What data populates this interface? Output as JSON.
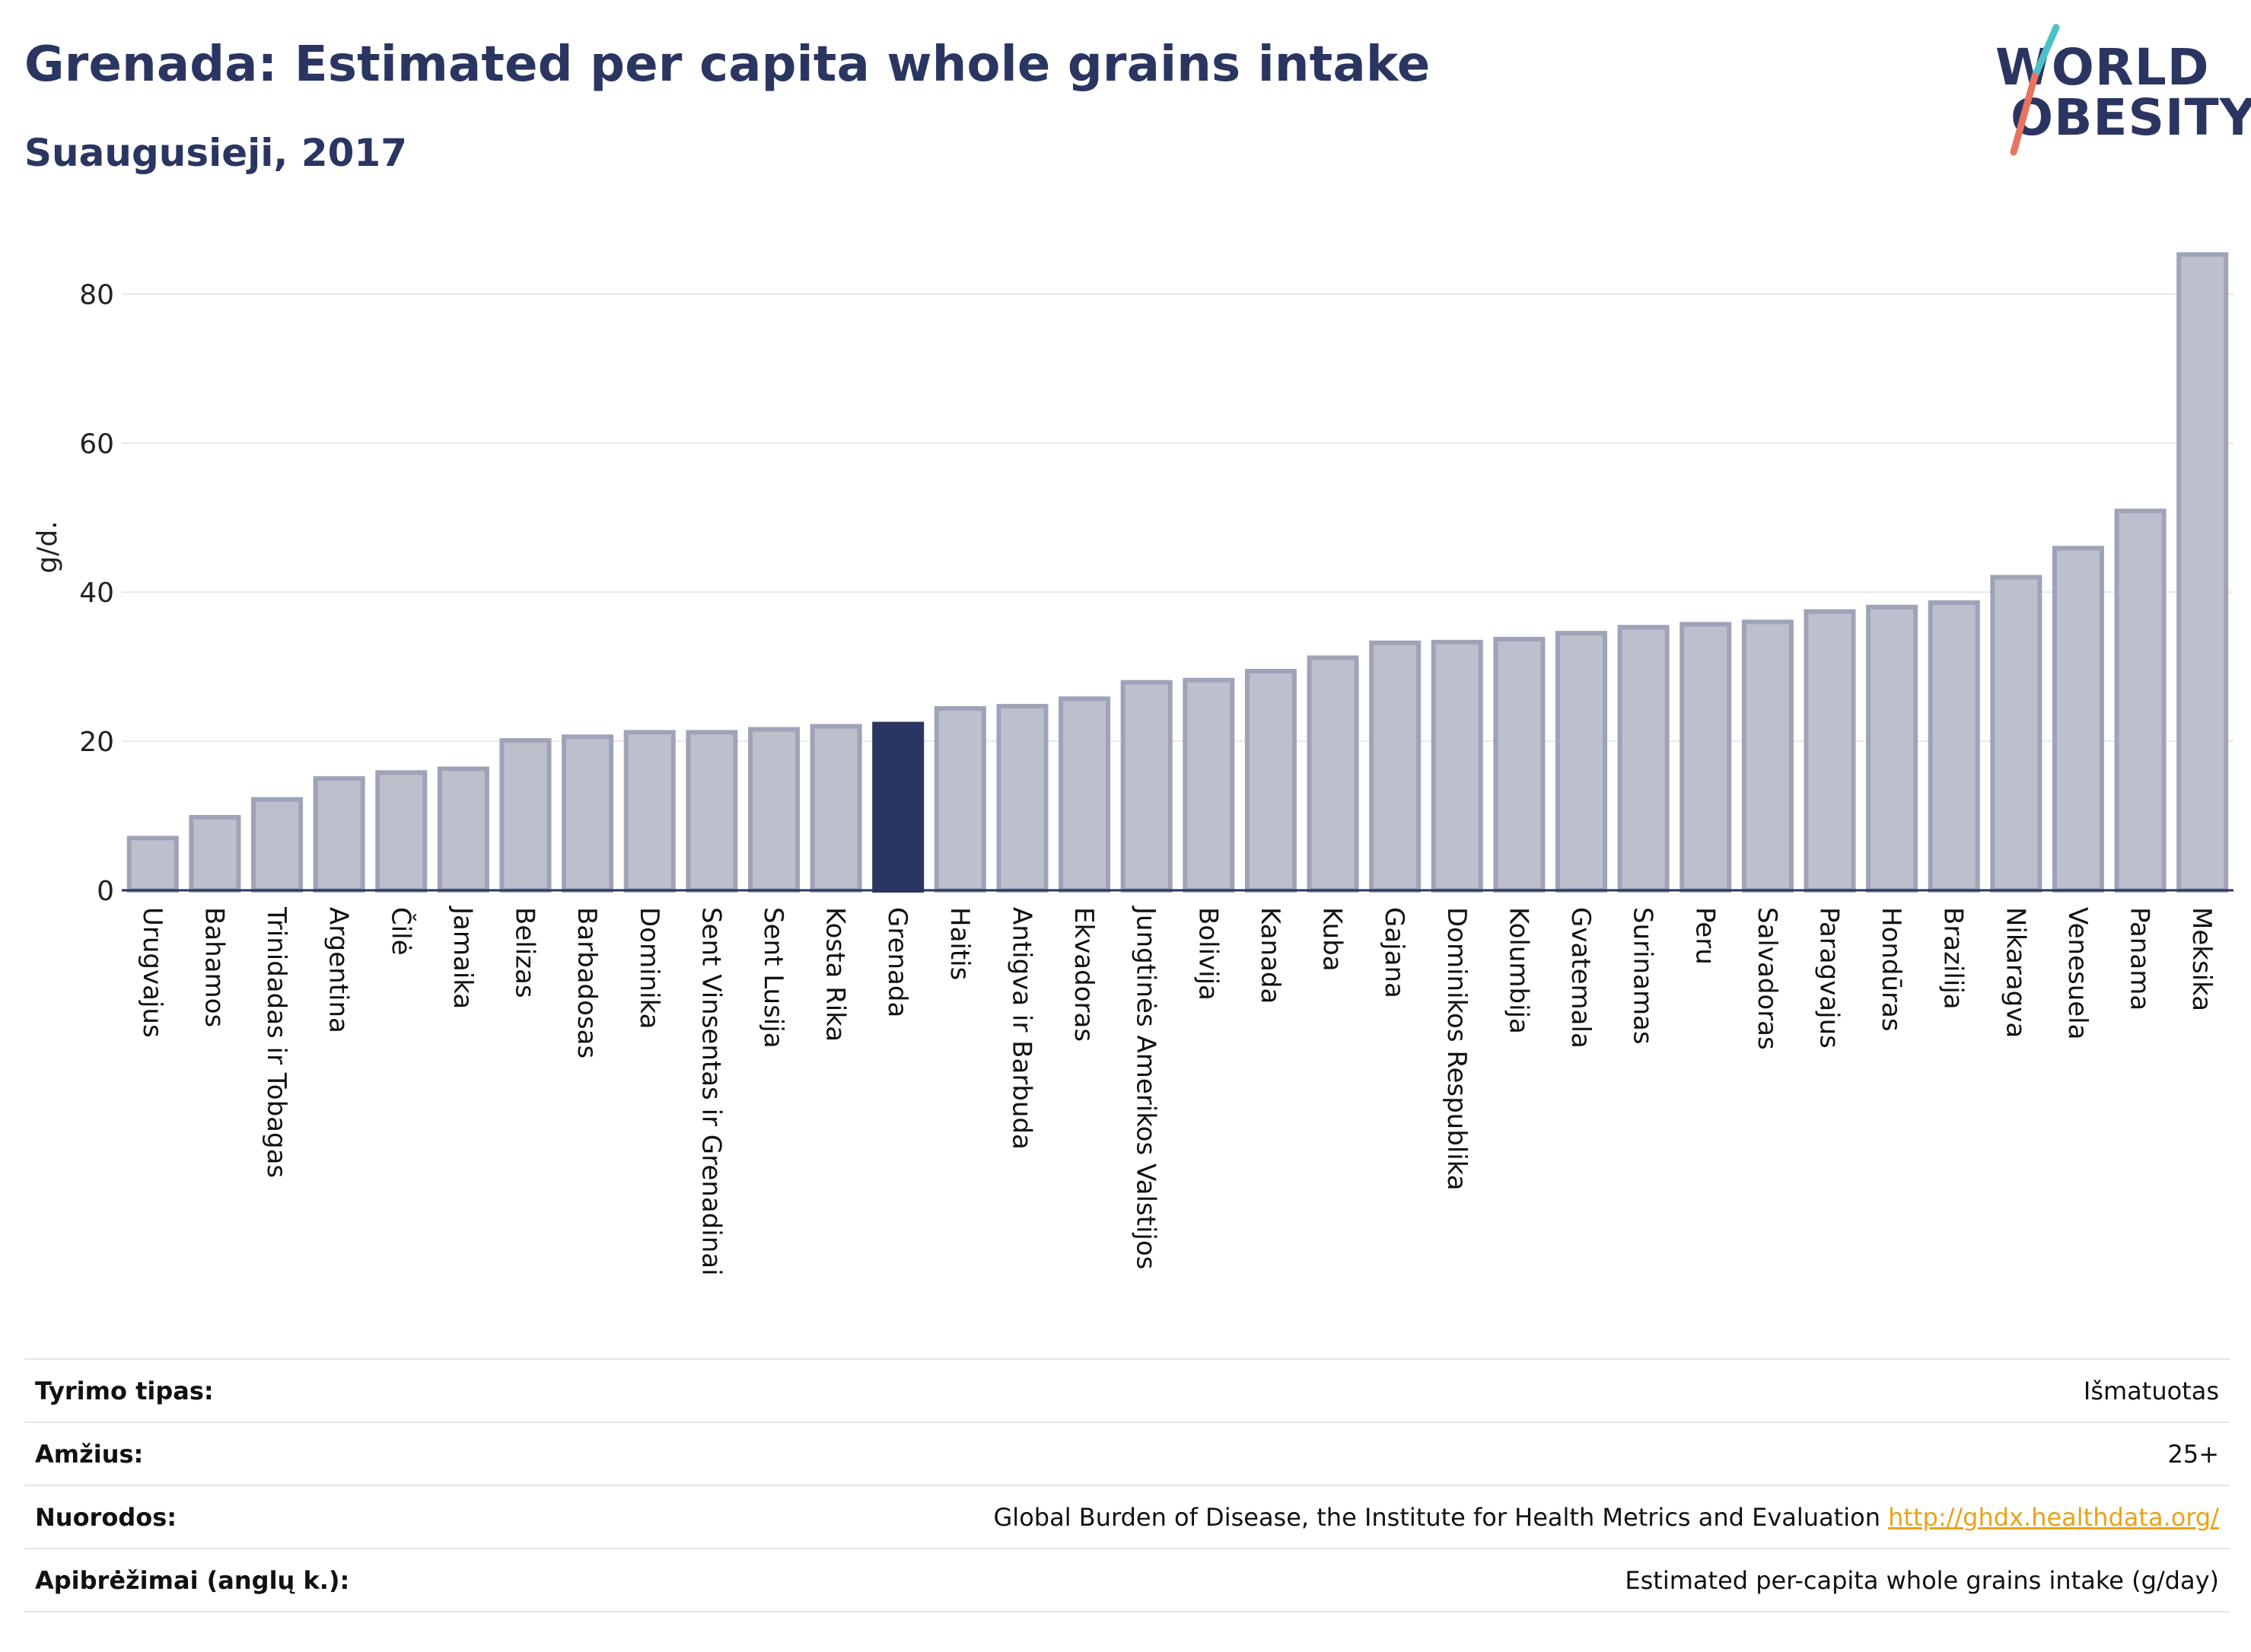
{
  "header": {
    "title": "Grenada: Estimated per capita whole grains intake",
    "subtitle": "Suaugusieji, 2017"
  },
  "logo": {
    "line1": "WORLD",
    "line2": "OBESITY",
    "stripe_colors": [
      "#4ec1c8",
      "#e8735f"
    ]
  },
  "chart_data": {
    "type": "bar",
    "ylabel": "g/d.",
    "ylim": [
      0,
      88
    ],
    "yticks": [
      0,
      20,
      40,
      60,
      80
    ],
    "grid": true,
    "highlight": "Grenada",
    "colors": {
      "bar": "#bcc0cd",
      "bar_border": "#9ea3b8",
      "highlight": "#2b3561",
      "grid": "#e8e8e8"
    },
    "categories": [
      "Urugvajus",
      "Bahamos",
      "Trinidadas ir Tobagas",
      "Argentina",
      "Čilė",
      "Jamaika",
      "Belizas",
      "Barbadosas",
      "Dominika",
      "Sent Vinsentas ir Grenadinai",
      "Sent Lusija",
      "Kosta Rika",
      "Grenada",
      "Haitis",
      "Antigva ir Barbuda",
      "Ekvadoras",
      "Jungtinės Amerikos Valstijos",
      "Bolivija",
      "Kanada",
      "Kuba",
      "Gajana",
      "Dominikos Respublika",
      "Kolumbija",
      "Gvatemala",
      "Surinamas",
      "Peru",
      "Salvadoras",
      "Paragvajus",
      "Hondūras",
      "Brazilija",
      "Nikaragva",
      "Venesuela",
      "Panama",
      "Meksika"
    ],
    "values": [
      7,
      9.8,
      12.2,
      15,
      15.8,
      16.3,
      20.1,
      20.6,
      21.2,
      21.2,
      21.6,
      22,
      22.3,
      24.4,
      24.7,
      25.7,
      27.9,
      28.2,
      29.4,
      31.2,
      33.2,
      33.3,
      33.7,
      34.5,
      35.3,
      35.7,
      36,
      37.4,
      38,
      38.6,
      42,
      45.9,
      50.9,
      85.3
    ]
  },
  "meta": [
    {
      "label": "Tyrimo tipas:",
      "value": "Išmatuotas"
    },
    {
      "label": "Amžius:",
      "value": "25+"
    },
    {
      "label": "Nuorodos:",
      "value": "Global Burden of Disease, the Institute for Health Metrics and Evaluation",
      "link": "http://ghdx.healthdata.org/"
    },
    {
      "label": "Apibrėžimai (anglų k.):",
      "value": "Estimated per-capita whole grains intake (g/day)"
    }
  ]
}
